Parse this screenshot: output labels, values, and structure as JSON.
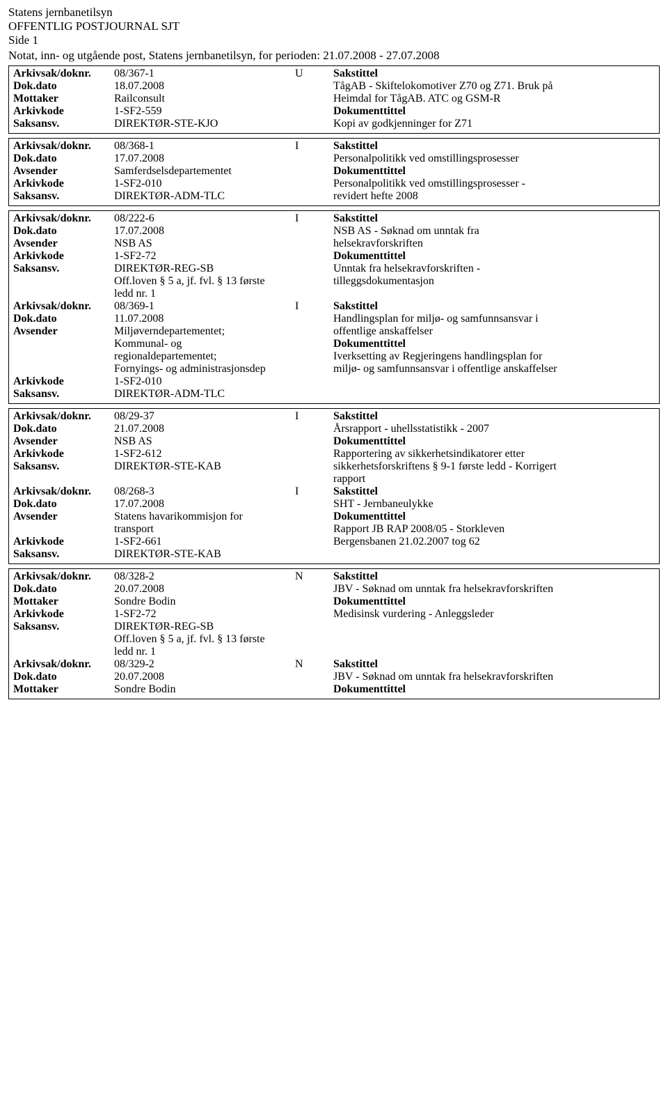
{
  "header": {
    "org": "Statens jernbanetilsyn",
    "title": "OFFENTLIG POSTJOURNAL SJT",
    "side": "Side 1",
    "period": "Notat, inn- og utgående post, Statens jernbanetilsyn, for perioden: 21.07.2008 - 27.07.2008"
  },
  "labels": {
    "arkivsak": "Arkivsak/doknr.",
    "dokdato": "Dok.dato",
    "mottaker": "Mottaker",
    "avsender": "Avsender",
    "arkivkode": "Arkivkode",
    "saksansv": "Saksansv.",
    "sakstittel": "Sakstittel",
    "dokumenttittel": "Dokumenttittel"
  },
  "records": [
    {
      "doknr": "08/367-1",
      "type": "U",
      "dato": "18.07.2008",
      "party_label": "Mottaker",
      "party": "Railconsult",
      "kode": "1-SF2-559",
      "ansv": "DIREKTØR-STE-KJO",
      "sak_lines": [
        "TågAB - Skiftelokomotiver Z70 og Z71. Bruk på",
        "Heimdal for TågAB. ATC og GSM-R"
      ],
      "dok_lines": [
        "Kopi av godkjenninger for Z71"
      ],
      "extra": []
    },
    {
      "doknr": "08/368-1",
      "type": "I",
      "dato": "17.07.2008",
      "party_label": "Avsender",
      "party": "Samferdselsdepartementet",
      "kode": "1-SF2-010",
      "ansv": "DIREKTØR-ADM-TLC",
      "sak_lines": [
        "Personalpolitikk ved omstillingsprosesser"
      ],
      "dok_lines": [
        "Personalpolitikk ved omstillingsprosesser -",
        "revidert hefte 2008"
      ],
      "extra": []
    },
    {
      "doknr": "08/222-6",
      "type": "I",
      "dato": "17.07.2008",
      "party_label": "Avsender",
      "party": "NSB AS",
      "kode": "1-SF2-72",
      "ansv": "DIREKTØR-REG-SB",
      "sak_lines": [
        "NSB AS - Søknad om unntak fra",
        "helsekravforskriften"
      ],
      "dok_lines": [
        "Unntak fra helsekravforskriften -",
        "tilleggsdokumentasjon"
      ],
      "extra": [
        "Off.loven § 5 a, jf. fvl. § 13 første",
        "ledd nr. 1"
      ],
      "combined_with_next": true
    },
    {
      "doknr": "08/369-1",
      "type": "I",
      "dato": "11.07.2008",
      "party_label": "Avsender",
      "party_lines": [
        "Miljøverndepartementet;",
        "Kommunal- og",
        "regionaldepartementet;",
        "Fornyings- og administrasjonsdep"
      ],
      "kode": "1-SF2-010",
      "ansv": "DIREKTØR-ADM-TLC",
      "sak_lines": [
        "Handlingsplan for miljø- og samfunnsansvar i",
        "offentlige anskaffelser"
      ],
      "dok_lines": [
        "Iverksetting av Regjeringens handlingsplan for",
        "miljø- og samfunnsansvar i offentlige anskaffelser"
      ],
      "extra": []
    },
    {
      "doknr": "08/29-37",
      "type": "I",
      "dato": "21.07.2008",
      "party_label": "Avsender",
      "party": "NSB AS",
      "kode": "1-SF2-612",
      "ansv": "DIREKTØR-STE-KAB",
      "sak_lines": [
        "Årsrapport - uhellsstatistikk - 2007"
      ],
      "dok_lines": [
        "Rapportering av sikkerhetsindikatorer etter",
        "sikkerhetsforskriftens § 9-1 første ledd - Korrigert",
        "rapport"
      ],
      "extra": [],
      "combined_with_next": true
    },
    {
      "doknr": "08/268-3",
      "type": "I",
      "dato": "17.07.2008",
      "party_label": "Avsender",
      "party_lines": [
        "Statens havarikommisjon for",
        "transport"
      ],
      "kode": "1-SF2-661",
      "ansv": "DIREKTØR-STE-KAB",
      "sak_lines": [
        "SHT - Jernbaneulykke"
      ],
      "dok_lines": [
        "Rapport JB RAP 2008/05 - Storkleven",
        "Bergensbanen 21.02.2007 tog 62"
      ],
      "extra": []
    },
    {
      "doknr": "08/328-2",
      "type": "N",
      "dato": "20.07.2008",
      "party_label": "Mottaker",
      "party": "Sondre Bodin",
      "kode": "1-SF2-72",
      "ansv": "DIREKTØR-REG-SB",
      "sak_lines": [
        "JBV - Søknad om unntak fra helsekravforskriften"
      ],
      "dok_lines": [
        "Medisinsk vurdering - Anleggsleder"
      ],
      "extra": [
        "Off.loven § 5 a, jf. fvl. § 13 første",
        "ledd nr. 1"
      ],
      "combined_with_next": true
    },
    {
      "doknr": "08/329-2",
      "type": "N",
      "dato": "20.07.2008",
      "party_label": "Mottaker",
      "party": "Sondre Bodin",
      "sak_lines": [
        "JBV - Søknad om unntak fra helsekravforskriften"
      ],
      "partial": true
    }
  ]
}
